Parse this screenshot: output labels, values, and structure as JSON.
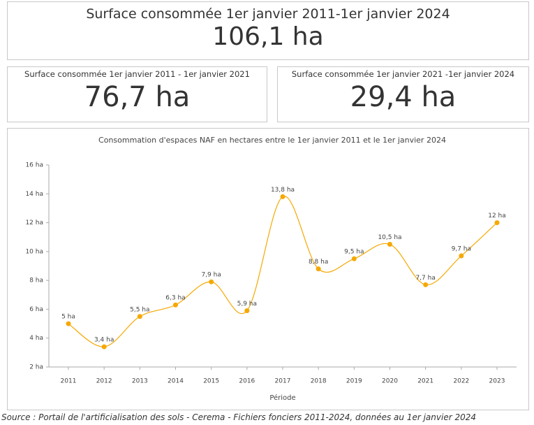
{
  "cards": [
    {
      "title": "Surface consommée 1er janvier 2011-1er janvier 2024",
      "value": "106,1 ha"
    },
    {
      "title": "Surface consommée 1er janvier 2011 - 1er janvier 2021",
      "value": "76,7 ha"
    },
    {
      "title": "Surface consommée 1er janvier 2021 -1er janvier 2024",
      "value": "29,4 ha"
    }
  ],
  "chart_data": {
    "type": "line",
    "title": "Consommation d'espaces NAF en hectares entre le 1er janvier 2011 et le 1er janvier 2024",
    "x_label": "Période",
    "categories": [
      "2011",
      "2012",
      "2013",
      "2014",
      "2015",
      "2016",
      "2017",
      "2018",
      "2019",
      "2020",
      "2021",
      "2022",
      "2023"
    ],
    "values": [
      5,
      3.4,
      5.5,
      6.3,
      7.9,
      5.9,
      13.8,
      8.8,
      9.5,
      10.5,
      7.7,
      9.7,
      12
    ],
    "value_labels": [
      "5 ha",
      "3,4 ha",
      "5,5 ha",
      "6,3 ha",
      "7,9 ha",
      "5,9 ha",
      "13,8 ha",
      "8,8 ha",
      "9,5 ha",
      "10,5 ha",
      "7,7 ha",
      "9,7 ha",
      "12 ha"
    ],
    "color": "#f5a800",
    "ylim": [
      2,
      16
    ],
    "yticks": [
      {
        "value": 2,
        "label": "2 ha"
      },
      {
        "value": 4,
        "label": "4 ha"
      },
      {
        "value": 6,
        "label": "6 ha"
      },
      {
        "value": 8,
        "label": "8 ha"
      },
      {
        "value": 10,
        "label": "10 ha"
      },
      {
        "value": 12,
        "label": "12 ha"
      },
      {
        "value": 14,
        "label": "14 ha"
      },
      {
        "value": 16,
        "label": "16 ha"
      }
    ],
    "grid": false
  },
  "source": "Source : Portail de l'artificialisation des sols - Cerema - Fichiers fonciers 2011-2024, données au 1er janvier 2024"
}
